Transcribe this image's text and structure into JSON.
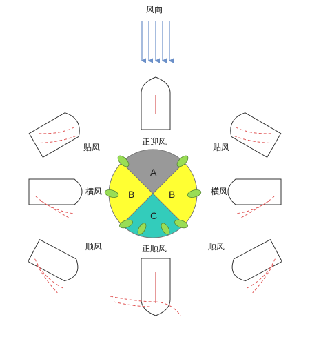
{
  "labels": {
    "wind_direction": "风向",
    "head_wind": "正迎风",
    "close_haul_left": "贴风",
    "close_haul_right": "贴风",
    "beam_reach_left": "横风",
    "beam_reach_right": "横风",
    "broad_reach_left": "顺风",
    "broad_reach_right": "顺风",
    "run": "正顺风"
  },
  "sectors": {
    "a": "A",
    "b_left": "B",
    "b_right": "B",
    "c": "C"
  },
  "colors": {
    "sector_a": "#999999",
    "sector_b": "#ffff33",
    "sector_c": "#33ccbb",
    "leaf": "#99dd55",
    "wind_arrow": "#6a8fc8",
    "sail_dashed": "#e05555"
  }
}
